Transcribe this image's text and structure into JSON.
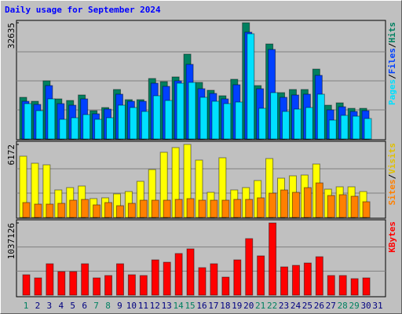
{
  "chart_data": {
    "type": "bar",
    "title": "Daily usage for September 2024",
    "categories": [
      "1",
      "2",
      "3",
      "4",
      "5",
      "6",
      "7",
      "8",
      "9",
      "10",
      "11",
      "12",
      "13",
      "14",
      "15",
      "16",
      "17",
      "18",
      "19",
      "20",
      "21",
      "22",
      "23",
      "24",
      "25",
      "26",
      "27",
      "28",
      "29",
      "30",
      "31"
    ],
    "category_colors": [
      "#008060",
      "#000080",
      "#000080",
      "#000080",
      "#000080",
      "#000080",
      "#008060",
      "#008060",
      "#000080",
      "#000080",
      "#000080",
      "#000080",
      "#000080",
      "#008060",
      "#008060",
      "#000080",
      "#000080",
      "#000080",
      "#000080",
      "#000080",
      "#008060",
      "#008060",
      "#000080",
      "#000080",
      "#000080",
      "#000080",
      "#000080",
      "#008060",
      "#008060",
      "#000080",
      "#000080"
    ],
    "legend_separator": "/",
    "panels": [
      {
        "ylim": [
          0,
          32635
        ],
        "yticks": [
          32635
        ],
        "series": [
          {
            "name": "Hits",
            "color": "#008060",
            "values": [
              11690,
              10580,
              16320,
              11250,
              10800,
              12350,
              7940,
              8820,
              13890,
              11030,
              11030,
              16980,
              16100,
              17420,
              23820,
              15880,
              13670,
              12130,
              16760,
              32635,
              14990,
              26680,
              13010,
              13890,
              13890,
              19620,
              9480,
              10140,
              8600,
              8600,
              null
            ]
          },
          {
            "name": "Files",
            "color": "#0040ff",
            "values": [
              10580,
              9700,
              14990,
              9920,
              9480,
              11250,
              7060,
              8380,
              12570,
              10580,
              10580,
              15660,
              14770,
              16320,
              20950,
              14110,
              12790,
              11250,
              15220,
              29990,
              14110,
              25140,
              11690,
              12350,
              12570,
              17860,
              8160,
              9040,
              7720,
              7940,
              null
            ]
          },
          {
            "name": "Pages",
            "color": "#00e0ff",
            "values": [
              9920,
              7940,
              11250,
              5510,
              5950,
              6840,
              5510,
              5950,
              9480,
              8820,
              7720,
              12130,
              10800,
              15660,
              15880,
              11690,
              10580,
              9920,
              10360,
              29550,
              8600,
              13010,
              7720,
              8380,
              8820,
              12570,
              5290,
              6620,
              6390,
              5730,
              null
            ]
          }
        ]
      },
      {
        "ylim": [
          0,
          6172
        ],
        "yticks": [
          6172
        ],
        "series": [
          {
            "name": "Visits",
            "color": "#ffff00",
            "label_color": "#e0c000",
            "values": [
              5176,
              4579,
              4446,
              2323,
              2522,
              2655,
              1593,
              1659,
              1991,
              2190,
              3053,
              4048,
              5508,
              5906,
              6172,
              4845,
              2124,
              5044,
              2323,
              2522,
              3119,
              4977,
              3318,
              3517,
              3584,
              4513,
              2389,
              2588,
              2588,
              2190,
              null
            ]
          },
          {
            "name": "Sites",
            "color": "#ff8000",
            "values": [
              1261,
              1128,
              1128,
              1195,
              1460,
              1526,
              1062,
              1261,
              995,
              1195,
              1460,
              1460,
              1460,
              1526,
              1593,
              1460,
              1460,
              1460,
              1526,
              1526,
              1659,
              2057,
              2323,
              2124,
              2522,
              2920,
              1858,
              1925,
              1792,
              1327,
              null
            ]
          }
        ]
      },
      {
        "ylim": [
          0,
          1037126
        ],
        "yticks": [
          1037126
        ],
        "series": [
          {
            "name": "KBytes",
            "color": "#ff0000",
            "values": [
              293000,
              248000,
              451000,
              338000,
              338000,
              451000,
              248000,
              282000,
              451000,
              293000,
              282000,
              507000,
              473000,
              598000,
              665000,
              395000,
              451000,
              259000,
              507000,
              812000,
              564000,
              1037126,
              406000,
              428000,
              462000,
              552000,
              282000,
              282000,
              237000,
              248000,
              null
            ]
          }
        ]
      }
    ]
  }
}
